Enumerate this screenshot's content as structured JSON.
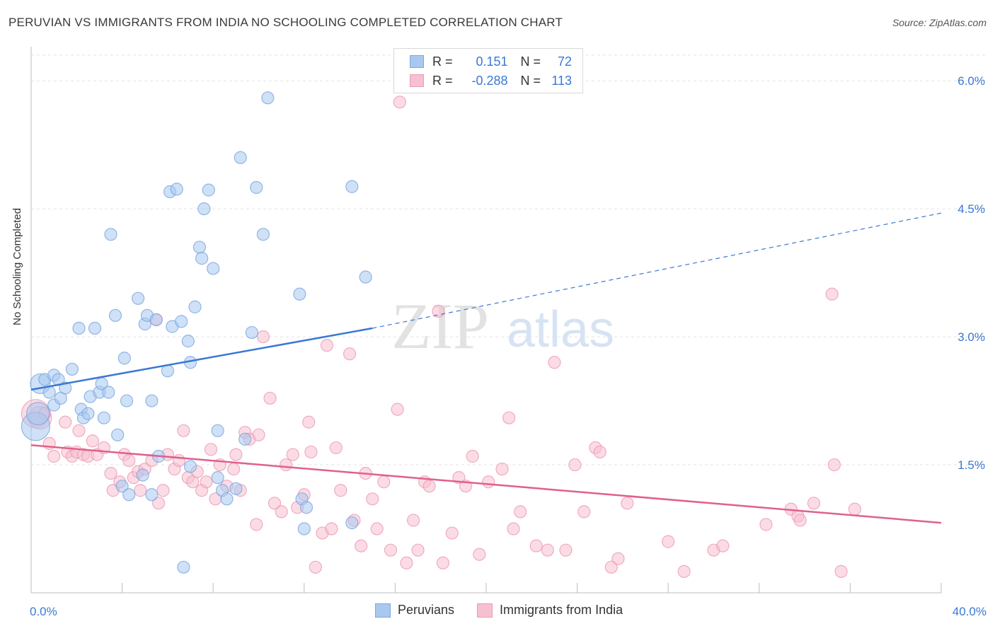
{
  "header": {
    "title": "PERUVIAN VS IMMIGRANTS FROM INDIA NO SCHOOLING COMPLETED CORRELATION CHART",
    "source": "Source: ZipAtlas.com"
  },
  "watermark": {
    "zip": "ZIP",
    "atlas": "atlas"
  },
  "legend": {
    "rows": [
      {
        "r_label": "R =",
        "r_value": "0.151",
        "n_label": "N =",
        "n_value": "72",
        "color": "#a8c8f0",
        "border": "#7aa6e0"
      },
      {
        "r_label": "R =",
        "r_value": "-0.288",
        "n_label": "N =",
        "n_value": "113",
        "color": "#f7c0d0",
        "border": "#ec9ab3"
      }
    ]
  },
  "bottom_legend": [
    {
      "label": "Peruvians",
      "color": "#a8c8f0",
      "border": "#7aa6e0"
    },
    {
      "label": "Immigrants from India",
      "color": "#f7c0d0",
      "border": "#ec9ab3"
    }
  ],
  "chart_data": {
    "type": "scatter",
    "title": "PERUVIAN VS IMMIGRANTS FROM INDIA NO SCHOOLING COMPLETED CORRELATION CHART",
    "xlabel": "",
    "ylabel": "No Schooling Completed",
    "xlim": [
      0,
      40
    ],
    "ylim": [
      0,
      6.3
    ],
    "x_tick_labels": [
      "0.0%",
      "40.0%"
    ],
    "y_ticks": [
      1.5,
      3.0,
      4.5,
      6.0
    ],
    "y_tick_labels": [
      "1.5%",
      "3.0%",
      "4.5%",
      "6.0%"
    ],
    "grid": true,
    "colors": {
      "peruvians": "#3a78d4",
      "india": "#e0608c",
      "peruvians_fill": "#a8c8f0",
      "india_fill": "#f7c0d0",
      "axis_text": "#3a78d4"
    },
    "series": [
      {
        "name": "Peruvians",
        "trend": {
          "x": [
            0,
            15
          ],
          "y": [
            2.38,
            3.1
          ],
          "dashed_to": [
            40,
            4.45
          ]
        },
        "points": [
          [
            0.2,
            1.95,
            3
          ],
          [
            0.3,
            2.1,
            2
          ],
          [
            0.4,
            2.45,
            1.5
          ],
          [
            0.6,
            2.5,
            1
          ],
          [
            0.8,
            2.35,
            1
          ],
          [
            1.0,
            2.55,
            1
          ],
          [
            1.0,
            2.2,
            1
          ],
          [
            1.2,
            2.5,
            1
          ],
          [
            1.3,
            2.28,
            1
          ],
          [
            1.5,
            2.4,
            1
          ],
          [
            1.8,
            2.62,
            1
          ],
          [
            2.1,
            3.1,
            1
          ],
          [
            2.2,
            2.15,
            1
          ],
          [
            2.3,
            2.05,
            1
          ],
          [
            2.5,
            2.1,
            1
          ],
          [
            2.6,
            2.3,
            1
          ],
          [
            2.8,
            3.1,
            1
          ],
          [
            3.0,
            2.35,
            1
          ],
          [
            3.1,
            2.45,
            1
          ],
          [
            3.2,
            2.05,
            1
          ],
          [
            3.4,
            2.35,
            1
          ],
          [
            3.5,
            4.2,
            1
          ],
          [
            3.7,
            3.25,
            1
          ],
          [
            3.8,
            1.85,
            1
          ],
          [
            4.0,
            1.25,
            1
          ],
          [
            4.1,
            2.75,
            1
          ],
          [
            4.2,
            2.25,
            1
          ],
          [
            4.3,
            1.15,
            1
          ],
          [
            4.7,
            3.45,
            1
          ],
          [
            4.9,
            1.38,
            1
          ],
          [
            5.0,
            3.15,
            1
          ],
          [
            5.1,
            3.25,
            1
          ],
          [
            5.3,
            2.25,
            1
          ],
          [
            5.3,
            1.15,
            1
          ],
          [
            5.5,
            3.2,
            1
          ],
          [
            5.6,
            1.6,
            1
          ],
          [
            6.0,
            2.6,
            1
          ],
          [
            6.1,
            4.7,
            1
          ],
          [
            6.2,
            3.12,
            1
          ],
          [
            6.4,
            4.73,
            1
          ],
          [
            6.6,
            3.18,
            1
          ],
          [
            6.7,
            0.3,
            1
          ],
          [
            6.9,
            2.95,
            1
          ],
          [
            7.0,
            1.48,
            1
          ],
          [
            7.0,
            2.7,
            1
          ],
          [
            7.2,
            3.35,
            1
          ],
          [
            7.4,
            4.05,
            1
          ],
          [
            7.5,
            3.92,
            1
          ],
          [
            7.6,
            4.5,
            1
          ],
          [
            7.8,
            4.72,
            1
          ],
          [
            8.0,
            3.8,
            1
          ],
          [
            8.2,
            1.9,
            1
          ],
          [
            8.2,
            1.35,
            1
          ],
          [
            8.4,
            1.2,
            1
          ],
          [
            8.6,
            1.1,
            1
          ],
          [
            9.0,
            1.22,
            1
          ],
          [
            9.2,
            5.1,
            1
          ],
          [
            9.4,
            1.8,
            1
          ],
          [
            9.7,
            3.05,
            1
          ],
          [
            9.9,
            4.75,
            1
          ],
          [
            10.2,
            4.2,
            1
          ],
          [
            10.4,
            5.8,
            1
          ],
          [
            11.8,
            3.5,
            1
          ],
          [
            11.9,
            1.1,
            1
          ],
          [
            12.0,
            0.75,
            1
          ],
          [
            12.1,
            1.0,
            1
          ],
          [
            14.1,
            0.82,
            1
          ],
          [
            14.1,
            4.76,
            1
          ],
          [
            14.7,
            3.7,
            1
          ]
        ]
      },
      {
        "name": "Immigrants from India",
        "trend": {
          "x": [
            0,
            40
          ],
          "y": [
            1.73,
            0.82
          ]
        },
        "points": [
          [
            0.2,
            2.1,
            3
          ],
          [
            0.4,
            2.05,
            2
          ],
          [
            0.6,
            2.1,
            1
          ],
          [
            0.8,
            1.75,
            1
          ],
          [
            1.0,
            1.6,
            1
          ],
          [
            1.5,
            2.0,
            1
          ],
          [
            1.6,
            1.65,
            1
          ],
          [
            1.8,
            1.6,
            1
          ],
          [
            2.0,
            1.65,
            1
          ],
          [
            2.1,
            1.9,
            1
          ],
          [
            2.3,
            1.62,
            1
          ],
          [
            2.5,
            1.6,
            1
          ],
          [
            2.7,
            1.78,
            1
          ],
          [
            2.9,
            1.62,
            1
          ],
          [
            3.2,
            1.7,
            1
          ],
          [
            3.5,
            1.4,
            1
          ],
          [
            3.6,
            1.2,
            1
          ],
          [
            3.9,
            1.3,
            1
          ],
          [
            4.1,
            1.62,
            1
          ],
          [
            4.3,
            1.55,
            1
          ],
          [
            4.5,
            1.35,
            1
          ],
          [
            4.7,
            1.42,
            1
          ],
          [
            4.8,
            1.2,
            1
          ],
          [
            5.0,
            1.45,
            1
          ],
          [
            5.3,
            1.55,
            1
          ],
          [
            5.5,
            3.2,
            1
          ],
          [
            5.6,
            1.05,
            1
          ],
          [
            5.8,
            1.2,
            1
          ],
          [
            6.0,
            1.62,
            1
          ],
          [
            6.3,
            1.45,
            1
          ],
          [
            6.5,
            1.55,
            1
          ],
          [
            6.7,
            1.9,
            1
          ],
          [
            6.9,
            1.35,
            1
          ],
          [
            7.1,
            1.3,
            1
          ],
          [
            7.3,
            1.42,
            1
          ],
          [
            7.5,
            1.2,
            1
          ],
          [
            7.7,
            1.3,
            1
          ],
          [
            7.9,
            1.68,
            1
          ],
          [
            8.1,
            1.1,
            1
          ],
          [
            8.3,
            1.5,
            1
          ],
          [
            8.6,
            1.25,
            1
          ],
          [
            8.9,
            1.45,
            1
          ],
          [
            9.0,
            1.62,
            1
          ],
          [
            9.2,
            1.2,
            1
          ],
          [
            9.4,
            1.88,
            1
          ],
          [
            9.6,
            1.8,
            1
          ],
          [
            9.9,
            0.8,
            1
          ],
          [
            10.0,
            1.85,
            1
          ],
          [
            10.2,
            3.0,
            1
          ],
          [
            10.5,
            2.28,
            1
          ],
          [
            10.7,
            1.05,
            1
          ],
          [
            11.0,
            0.95,
            1
          ],
          [
            11.2,
            1.5,
            1
          ],
          [
            11.5,
            1.62,
            1
          ],
          [
            11.7,
            1.0,
            1
          ],
          [
            12.0,
            1.15,
            1
          ],
          [
            12.2,
            2.0,
            1
          ],
          [
            12.3,
            1.65,
            1
          ],
          [
            12.5,
            0.3,
            1
          ],
          [
            12.8,
            0.7,
            1
          ],
          [
            13.0,
            2.9,
            1
          ],
          [
            13.2,
            0.75,
            1
          ],
          [
            13.4,
            1.7,
            1
          ],
          [
            13.6,
            1.2,
            1
          ],
          [
            14.0,
            2.8,
            1
          ],
          [
            14.2,
            0.85,
            1
          ],
          [
            14.5,
            0.55,
            1
          ],
          [
            14.7,
            1.4,
            1
          ],
          [
            15.0,
            1.1,
            1
          ],
          [
            15.2,
            0.75,
            1
          ],
          [
            15.5,
            1.3,
            1
          ],
          [
            15.8,
            0.5,
            1
          ],
          [
            16.1,
            2.15,
            1
          ],
          [
            16.5,
            0.35,
            1
          ],
          [
            16.8,
            0.85,
            1
          ],
          [
            17.0,
            0.5,
            1
          ],
          [
            17.3,
            1.3,
            1
          ],
          [
            17.5,
            1.25,
            1
          ],
          [
            17.9,
            3.3,
            1
          ],
          [
            18.1,
            0.35,
            1
          ],
          [
            18.5,
            0.7,
            1
          ],
          [
            18.8,
            1.35,
            1
          ],
          [
            19.1,
            1.25,
            1
          ],
          [
            19.4,
            1.6,
            1
          ],
          [
            19.7,
            0.45,
            1
          ],
          [
            20.1,
            1.3,
            1
          ],
          [
            20.7,
            1.45,
            1
          ],
          [
            21.0,
            2.05,
            1
          ],
          [
            21.2,
            0.75,
            1
          ],
          [
            21.5,
            0.95,
            1
          ],
          [
            22.2,
            0.55,
            1
          ],
          [
            22.7,
            0.5,
            1
          ],
          [
            23.0,
            2.7,
            1
          ],
          [
            23.5,
            0.5,
            1
          ],
          [
            23.9,
            1.5,
            1
          ],
          [
            24.3,
            0.95,
            1
          ],
          [
            24.8,
            1.7,
            1
          ],
          [
            25.0,
            1.65,
            1
          ],
          [
            25.5,
            0.3,
            1
          ],
          [
            25.8,
            0.4,
            1
          ],
          [
            26.2,
            1.05,
            1
          ],
          [
            28.0,
            0.6,
            1
          ],
          [
            28.7,
            0.25,
            1
          ],
          [
            30.0,
            0.5,
            1
          ],
          [
            30.4,
            0.55,
            1
          ],
          [
            32.3,
            0.8,
            1
          ],
          [
            33.4,
            0.98,
            1
          ],
          [
            33.7,
            0.9,
            1
          ],
          [
            33.8,
            0.85,
            1
          ],
          [
            34.4,
            1.05,
            1
          ],
          [
            35.2,
            3.5,
            1
          ],
          [
            35.3,
            1.5,
            1
          ],
          [
            35.6,
            0.25,
            1
          ],
          [
            36.2,
            0.98,
            1
          ],
          [
            16.2,
            5.75,
            1
          ]
        ]
      }
    ]
  }
}
